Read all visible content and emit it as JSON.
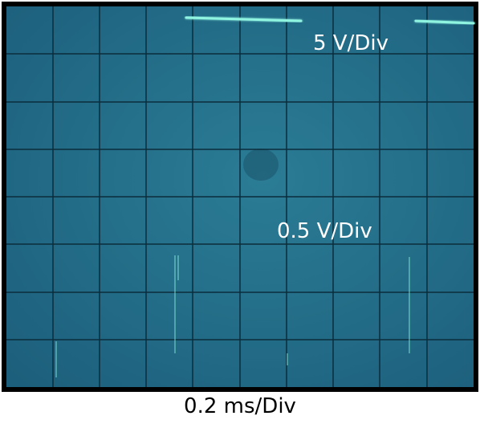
{
  "labels": {
    "upper_channel": "5 V/Div",
    "lower_channel": "0.5 V/Div",
    "timebase": "0.2 ms/Div"
  }
}
